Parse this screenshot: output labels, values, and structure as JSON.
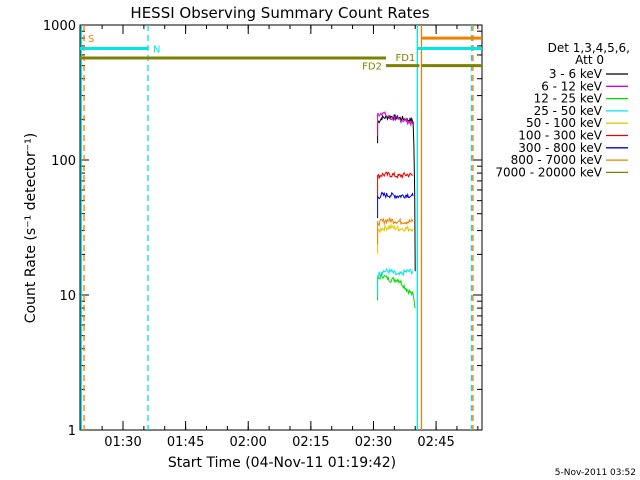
{
  "chart_data": {
    "type": "line",
    "title": "HESSI Observing Summary Count Rates",
    "xlabel": "Start Time (04-Nov-11 01:19:42)",
    "ylabel": "Count Rate (s⁻¹ detector⁻¹)",
    "y_scale": "log",
    "ylim": [
      1,
      1000
    ],
    "xlim": [
      "01:19:42",
      "02:56:00"
    ],
    "x_ticks": [
      "01:30",
      "01:45",
      "02:00",
      "02:15",
      "02:30",
      "02:45"
    ],
    "y_ticks": [
      "1",
      "10",
      "100",
      "1000"
    ],
    "legend_header": [
      "Det 1,3,4,5,6,",
      "Att 0"
    ],
    "legend_position": "right",
    "timestamp": "5-Nov-2011 03:52",
    "series": [
      {
        "name": "3 - 6 keV",
        "color": "#000000",
        "x": [
          "02:31:00",
          "02:32:00",
          "02:34:00",
          "02:36:00",
          "02:38:00",
          "02:39:30",
          "02:40:00"
        ],
        "y": [
          190,
          205,
          210,
          205,
          200,
          195,
          15
        ]
      },
      {
        "name": "6 - 12 keV",
        "color": "#dd00dd",
        "x": [
          "02:31:00",
          "02:32:00",
          "02:34:00",
          "02:36:00",
          "02:38:00",
          "02:39:30"
        ],
        "y": [
          215,
          225,
          205,
          200,
          195,
          185
        ]
      },
      {
        "name": "12 - 25 keV",
        "color": "#00dd00",
        "x": [
          "02:31:00",
          "02:32:00",
          "02:34:00",
          "02:36:00",
          "02:38:00",
          "02:39:30",
          "02:40:00"
        ],
        "y": [
          13,
          14,
          13,
          13,
          11,
          10,
          8
        ]
      },
      {
        "name": "25 - 50 keV",
        "color": "#00e5e5",
        "x": [
          "02:31:00",
          "02:32:00",
          "02:34:00",
          "02:36:00",
          "02:38:00",
          "02:39:30"
        ],
        "y": [
          14,
          15,
          15,
          14,
          15,
          15
        ]
      },
      {
        "name": "50 - 100 keV",
        "color": "#e6c800",
        "x": [
          "02:31:00",
          "02:32:00",
          "02:34:00",
          "02:36:00",
          "02:38:00",
          "02:39:30"
        ],
        "y": [
          29,
          31,
          32,
          31,
          31,
          31
        ]
      },
      {
        "name": "100 - 300 keV",
        "color": "#ee0000",
        "x": [
          "02:31:00",
          "02:32:00",
          "02:34:00",
          "02:36:00",
          "02:38:00",
          "02:39:30"
        ],
        "y": [
          75,
          78,
          78,
          76,
          78,
          77
        ]
      },
      {
        "name": "300 - 800 keV",
        "color": "#0000dd",
        "x": [
          "02:31:00",
          "02:32:00",
          "02:34:00",
          "02:36:00",
          "02:38:00",
          "02:39:30"
        ],
        "y": [
          53,
          55,
          55,
          54,
          55,
          54
        ]
      },
      {
        "name": "800 - 7000 keV",
        "color": "#f08000",
        "x": [
          "02:31:00",
          "02:32:00",
          "02:34:00",
          "02:36:00",
          "02:38:00",
          "02:39:30"
        ],
        "y": [
          34,
          35,
          36,
          35,
          35,
          35
        ]
      },
      {
        "name": "7000 - 20000 keV",
        "color": "#808000",
        "x": [],
        "y": []
      }
    ],
    "annotations": {
      "vertical_lines": [
        {
          "time": "01:20:00",
          "color": "#00e5e5",
          "style": "solid"
        },
        {
          "time": "01:20:40",
          "color": "#f08000",
          "style": "dashed"
        },
        {
          "time": "01:36:00",
          "color": "#00e5e5",
          "style": "dashed"
        },
        {
          "time": "02:40:30",
          "color": "#00e5e5",
          "style": "solid"
        },
        {
          "time": "02:41:30",
          "color": "#f08000",
          "style": "solid"
        },
        {
          "time": "02:53:30",
          "color": "#00e5e5",
          "style": "dashed"
        },
        {
          "time": "02:53:50",
          "color": "#f08000",
          "style": "dashed"
        }
      ],
      "segments": [
        {
          "label": "S",
          "color": "#f08000",
          "x_start": "01:20:40",
          "x_end": null,
          "y": 800
        },
        {
          "label": "N",
          "color": "#00e5e5",
          "x_start": "01:19:42",
          "x_end": "01:36:00",
          "y": 670
        },
        {
          "label": "FD1",
          "color": "#808000",
          "x_start": "01:19:42",
          "x_end": "02:33:00",
          "y": 570
        },
        {
          "label": "FD2",
          "color": "#808000",
          "x_start": "02:33:00",
          "x_end": "02:41:00",
          "y": 500
        },
        {
          "label": "",
          "color": "#00e5e5",
          "x_start": "02:40:30",
          "x_end": "02:56:00",
          "y": 670
        },
        {
          "label": "",
          "color": "#f08000",
          "x_start": "02:41:30",
          "x_end": "02:56:00",
          "y": 800
        },
        {
          "label": "",
          "color": "#808000",
          "x_start": "02:41:30",
          "x_end": "02:56:00",
          "y": 500
        }
      ]
    }
  }
}
